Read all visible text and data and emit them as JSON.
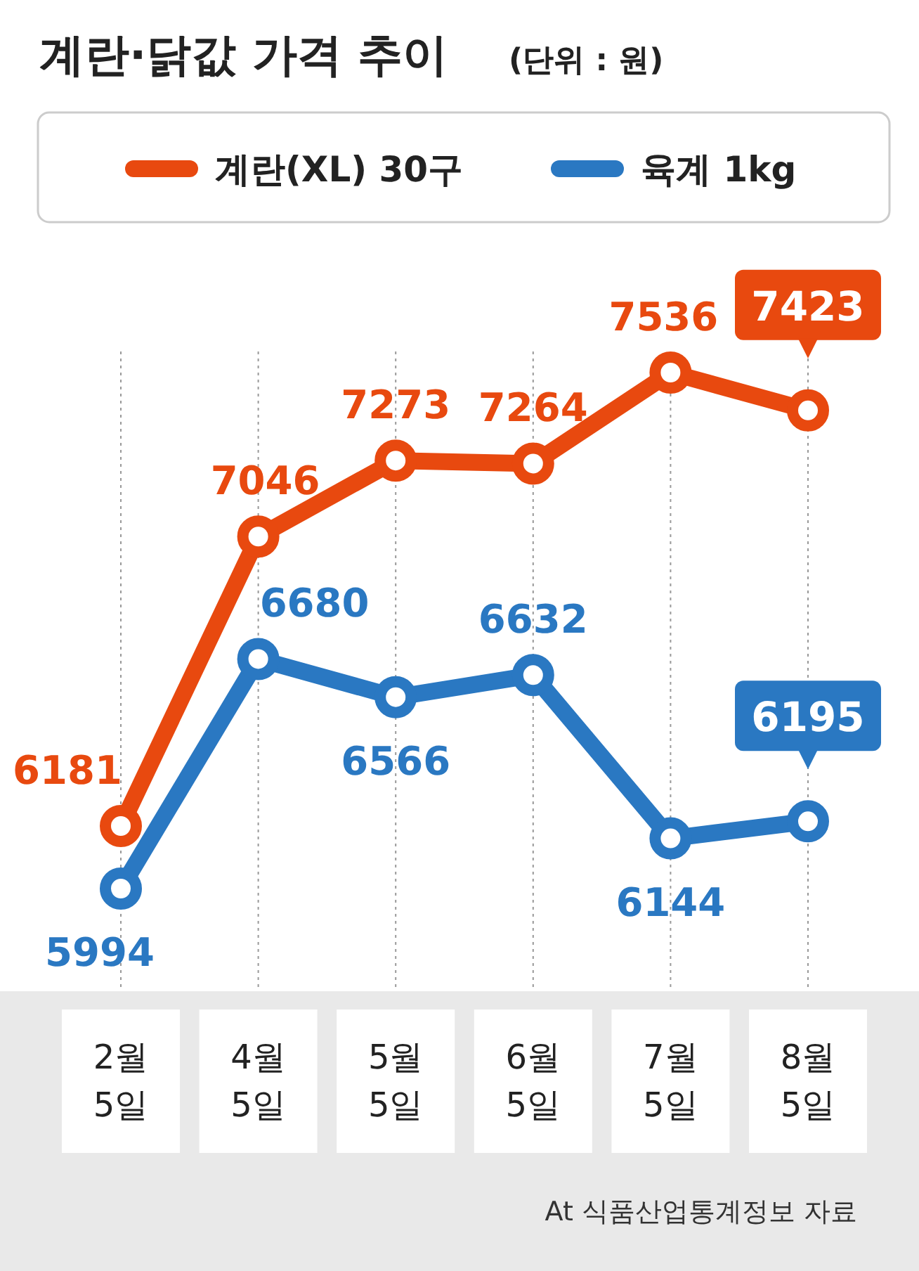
{
  "chart_data": {
    "type": "line",
    "title": "계란·닭값 가격 추이",
    "subtitle": "(단위 : 원)",
    "categories": [
      "2월\n5일",
      "4월\n5일",
      "5월\n5일",
      "6월\n5일",
      "7월\n5일",
      "8월\n5일"
    ],
    "series": [
      {
        "name": "계란(XL) 30구",
        "color": "#e8490f",
        "values": [
          6181,
          7046,
          7273,
          7264,
          7536,
          7423
        ]
      },
      {
        "name": "육계 1kg",
        "color": "#2a78c2",
        "values": [
          5994,
          6680,
          6566,
          6632,
          6144,
          6195
        ]
      }
    ],
    "data_labels": true,
    "marker": "circle",
    "line_style": "solid",
    "grid": "x",
    "legend": "top",
    "annotations": [
      "At 식품산업통계정보 자료"
    ]
  }
}
